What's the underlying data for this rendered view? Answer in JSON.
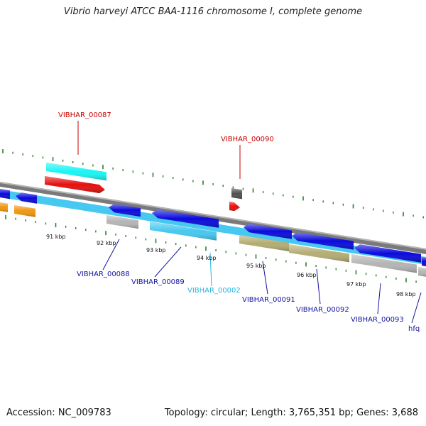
{
  "title": "Vibrio harveyi ATCC BAA-1116 chromosome I, complete genome",
  "footer": {
    "accession": "Accession: NC_009783",
    "summary": "Topology: circular; Length: 3,765,351 bp; Genes: 3,688"
  },
  "colors": {
    "backbone": "#808080",
    "tick": "#2e7d2e",
    "blue_gene": "#0a0adc",
    "light_blue_gene": "#46c8f0",
    "cyan_gene": "#19f5f5",
    "red_gene": "#e60f0f",
    "gray_gene": "#b4b4b4",
    "olive_gene": "#b4ac73",
    "orange_gene": "#f0960f",
    "dark_gray_gene": "#505050",
    "label_blue": "#1414a0",
    "label_red": "#c80000",
    "label_cyan": "#28b4dc"
  },
  "scale_labels": [
    "91 kbp",
    "92 kbp",
    "93 kbp",
    "94 kbp",
    "95 kbp",
    "96 kbp",
    "97 kbp",
    "98 kbp"
  ],
  "gene_labels": [
    {
      "id": "VIBHAR_00087",
      "color": "label_red"
    },
    {
      "id": "VIBHAR_00090",
      "color": "label_red"
    },
    {
      "id": "VIBHAR_00088",
      "color": "label_blue"
    },
    {
      "id": "VIBHAR_00089",
      "color": "label_blue"
    },
    {
      "id": "VIBHAR_00002",
      "color": "label_cyan"
    },
    {
      "id": "VIBHAR_00091",
      "color": "label_blue"
    },
    {
      "id": "VIBHAR_00092",
      "color": "label_blue"
    },
    {
      "id": "VIBHAR_00093",
      "color": "label_blue"
    },
    {
      "id": "hfq",
      "color": "label_blue"
    }
  ]
}
